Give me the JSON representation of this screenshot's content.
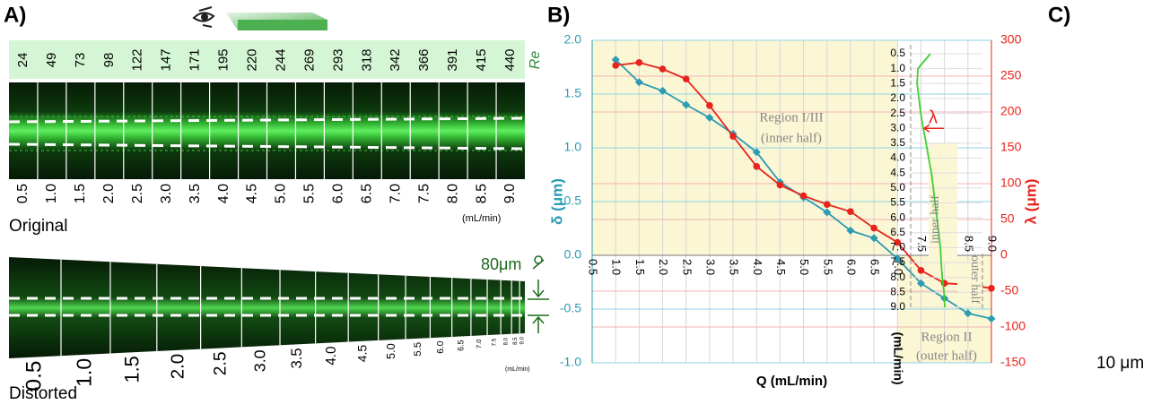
{
  "panel_a": {
    "label": "A)",
    "re_label": "Re",
    "re": [
      24,
      49,
      73,
      98,
      122,
      147,
      171,
      195,
      220,
      244,
      269,
      293,
      318,
      342,
      366,
      391,
      415,
      440
    ],
    "flow_rates": [
      "0.5",
      "1.0",
      "1.5",
      "2.0",
      "2.5",
      "3.0",
      "3.5",
      "4.0",
      "4.5",
      "5.0",
      "5.5",
      "6.0",
      "6.5",
      "7.0",
      "7.5",
      "8.0",
      "8.5",
      "9.0"
    ],
    "unit": "(mL/min)",
    "original": "Original",
    "distorted": "Distorted",
    "scale": "80μm"
  },
  "chart_data": [
    {
      "type": "line",
      "label": "B)",
      "xlabel": "Q (mL/min)",
      "ylabel": "δ (μm)",
      "y2label": "λ (μm)",
      "grid": true,
      "x": [
        1,
        1.5,
        2,
        2.5,
        3,
        3.5,
        4,
        4.5,
        5,
        5.5,
        6,
        6.5,
        7,
        7.5,
        8,
        8.5,
        9
      ],
      "series": [
        {
          "color": "#2b9cb3",
          "marker": "diamond",
          "values": [
            1.82,
            1.61,
            1.53,
            1.4,
            1.28,
            1.13,
            0.96,
            0.68,
            0.54,
            0.4,
            0.23,
            0.16,
            -0.03,
            -0.26,
            -0.4,
            -0.54,
            -0.59
          ]
        },
        {
          "color": "#e8231c",
          "marker": "circle",
          "axis": "y2",
          "values": [
            265,
            269,
            260,
            246,
            209,
            166,
            124,
            98,
            83,
            71,
            61,
            38,
            18,
            -21,
            -39,
            -41,
            -46
          ]
        }
      ],
      "xlim": [
        0.5,
        9
      ],
      "xticks": [
        0.5,
        {
          "value": 1,
          "label": "1.0"
        },
        1.5,
        {
          "value": 2,
          "label": "2.0"
        },
        2.5,
        {
          "value": 3,
          "label": "3.0"
        },
        3.5,
        {
          "value": 4,
          "label": "4.0"
        },
        4.5,
        {
          "value": 5,
          "label": "5.0"
        },
        5.5,
        {
          "value": 6,
          "label": "6.0"
        },
        6.5,
        {
          "value": 7,
          "label": "7.0"
        },
        7.5,
        {
          "value": 8,
          "label": "8.0"
        },
        8.5,
        {
          "value": 9,
          "label": "9.0"
        }
      ],
      "ylim": [
        -1,
        2
      ],
      "yticks": [
        {
          "value": -1,
          "label": "-1.0"
        },
        -0.5,
        {
          "value": 0,
          "label": "0.0"
        },
        0.5,
        {
          "value": 1,
          "label": "1.0"
        },
        1.5,
        {
          "value": 2,
          "label": "2.0"
        }
      ],
      "y2lim": [
        -150,
        300
      ],
      "y2ticks": [
        -150,
        -100,
        -50,
        0,
        50,
        100,
        150,
        200,
        250,
        300
      ],
      "annotations": [
        "Region I/III",
        "(inner half)",
        "Region II",
        "(outer half)"
      ]
    },
    {
      "type": "line",
      "label": "C)",
      "ylabel": "(mL/min)",
      "scale_label": "10 μm",
      "y_reversed": true,
      "xlim": [
        0,
        20
      ],
      "ylim": [
        0.2,
        9.3
      ],
      "yticks": [
        0.5,
        {
          "value": 1,
          "label": "1.0"
        },
        1.5,
        {
          "value": 2,
          "label": "2.0"
        },
        2.5,
        {
          "value": 3,
          "label": "3.0"
        },
        3.5,
        {
          "value": 4,
          "label": "4.0"
        },
        4.5,
        {
          "value": 5,
          "label": "5.0"
        },
        5.5,
        {
          "value": 6,
          "label": "6.0"
        },
        6.5,
        {
          "value": 7,
          "label": "7.0"
        },
        7.5,
        {
          "value": 8,
          "label": "8.0"
        },
        8.5,
        {
          "value": 9,
          "label": "9.0"
        }
      ],
      "series": [
        {
          "color": "#3fcf2f",
          "x": [
            5.5,
            2,
            1.8,
            2.3,
            2.8,
            3.5,
            4.3,
            5,
            5.8,
            6.3,
            6.8,
            7.3,
            7.8,
            8.3,
            8.5,
            8.8,
            9.3,
            9.5
          ],
          "y": [
            0.5,
            1,
            1.5,
            2,
            2.5,
            3,
            3.5,
            4,
            4.5,
            5,
            5.5,
            6,
            6.5,
            7,
            7.5,
            8,
            8.5,
            9
          ]
        }
      ],
      "annotations": [
        "λ",
        "inner half",
        "outer half"
      ]
    }
  ]
}
